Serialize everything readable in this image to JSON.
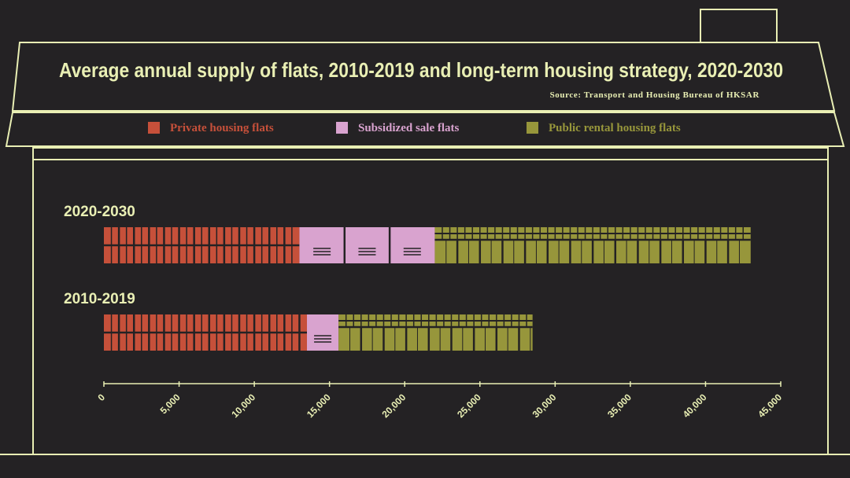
{
  "colors": {
    "background": "#242224",
    "outline": "#e9efb4",
    "text": "#e9efb4",
    "private": "#c6503a",
    "subsidized": "#d9a3cf",
    "public": "#97963b"
  },
  "title": "Average annual supply of flats, 2010-2019 and long-term housing strategy, 2020-2030",
  "source": "Source: Transport and Housing Bureau of HKSAR",
  "legend": [
    {
      "key": "private",
      "label": "Private housing flats",
      "color": "#c6503a"
    },
    {
      "key": "subsidized",
      "label": "Subsidized sale flats",
      "color": "#d9a3cf"
    },
    {
      "key": "public",
      "label": "Public rental housing flats",
      "color": "#97963b"
    }
  ],
  "chart_data": {
    "type": "bar",
    "orientation": "horizontal",
    "stacked": true,
    "title": "Average annual supply of flats, 2010-2019 and long-term housing strategy, 2020-2030",
    "categories": [
      "2020-2030",
      "2010-2019"
    ],
    "series": [
      {
        "name": "Private housing flats",
        "values": [
          13000,
          13500
        ]
      },
      {
        "name": "Subsidized sale flats",
        "values": [
          9000,
          2100
        ]
      },
      {
        "name": "Public rental housing flats",
        "values": [
          21000,
          12900
        ]
      }
    ],
    "xlim": [
      0,
      45000
    ],
    "xticks": [
      0,
      5000,
      10000,
      15000,
      20000,
      25000,
      30000,
      35000,
      40000,
      45000
    ],
    "xtick_labels": [
      "0",
      "5,000",
      "10,000",
      "15,000",
      "20,000",
      "25,000",
      "30,000",
      "35,000",
      "40,000",
      "45,000"
    ],
    "xlabel": "",
    "ylabel": ""
  }
}
